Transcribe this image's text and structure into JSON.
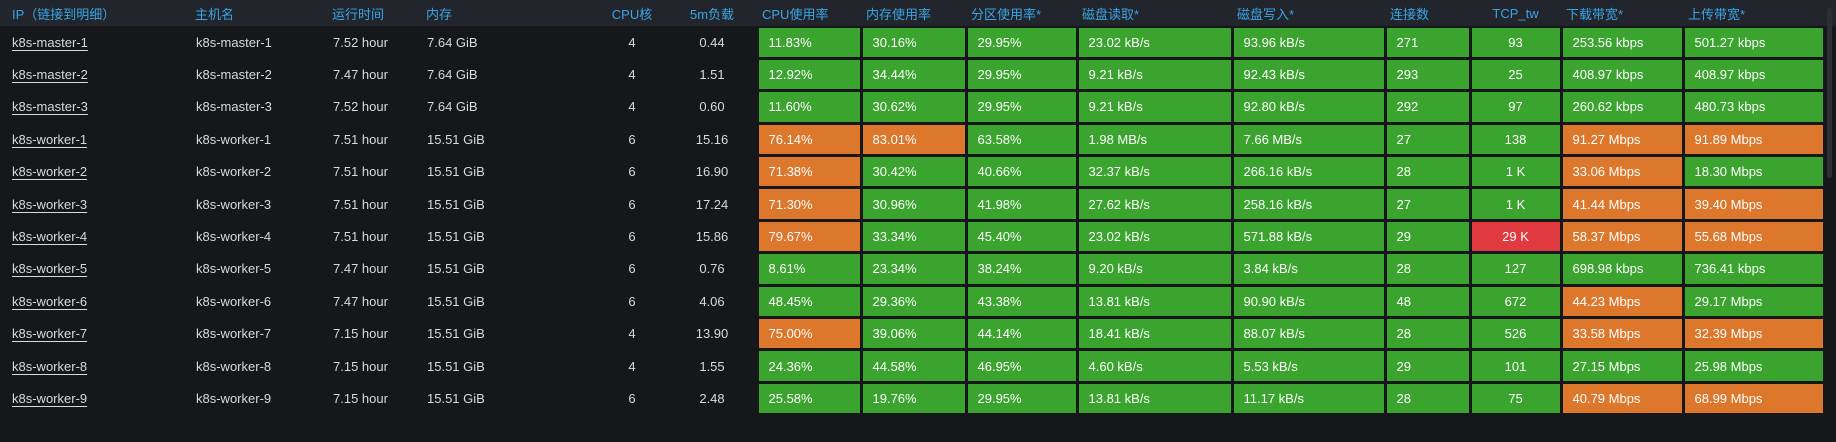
{
  "colors": {
    "green": "#3aa42e",
    "orange": "#dc772b",
    "red": "#e0393f",
    "header_text": "#3aa5e6"
  },
  "table": {
    "columns": [
      {
        "id": "ip",
        "label": "IP（链接到明细）"
      },
      {
        "id": "hostname",
        "label": "主机名"
      },
      {
        "id": "uptime",
        "label": "运行时间"
      },
      {
        "id": "memory",
        "label": "内存"
      },
      {
        "id": "cpu_cores",
        "label": "CPU核"
      },
      {
        "id": "load_5m",
        "label": "5m负载"
      },
      {
        "id": "cpu_usage",
        "label": "CPU使用率"
      },
      {
        "id": "mem_usage",
        "label": "内存使用率"
      },
      {
        "id": "partition_usage",
        "label": "分区使用率*"
      },
      {
        "id": "disk_read",
        "label": "磁盘读取*"
      },
      {
        "id": "disk_write",
        "label": "磁盘写入*"
      },
      {
        "id": "connections",
        "label": "连接数"
      },
      {
        "id": "tcp_tw",
        "label": "TCP_tw"
      },
      {
        "id": "download_bw",
        "label": "下载带宽*"
      },
      {
        "id": "upload_bw",
        "label": "上传带宽*"
      }
    ],
    "rows": [
      {
        "ip": "k8s-master-1",
        "hostname": "k8s-master-1",
        "uptime": "7.52 hour",
        "memory": "7.64 GiB",
        "cpu_cores": "4",
        "load_5m": "0.44",
        "cpu_usage": {
          "v": "11.83%",
          "c": "green"
        },
        "mem_usage": {
          "v": "30.16%",
          "c": "green"
        },
        "partition_usage": {
          "v": "29.95%",
          "c": "green"
        },
        "disk_read": {
          "v": "23.02 kB/s",
          "c": "green"
        },
        "disk_write": {
          "v": "93.96 kB/s",
          "c": "green"
        },
        "connections": {
          "v": "271",
          "c": "green"
        },
        "tcp_tw": {
          "v": "93",
          "c": "green"
        },
        "download_bw": {
          "v": "253.56 kbps",
          "c": "green"
        },
        "upload_bw": {
          "v": "501.27 kbps",
          "c": "green"
        }
      },
      {
        "ip": "k8s-master-2",
        "hostname": "k8s-master-2",
        "uptime": "7.47 hour",
        "memory": "7.64 GiB",
        "cpu_cores": "4",
        "load_5m": "1.51",
        "cpu_usage": {
          "v": "12.92%",
          "c": "green"
        },
        "mem_usage": {
          "v": "34.44%",
          "c": "green"
        },
        "partition_usage": {
          "v": "29.95%",
          "c": "green"
        },
        "disk_read": {
          "v": "9.21 kB/s",
          "c": "green"
        },
        "disk_write": {
          "v": "92.43 kB/s",
          "c": "green"
        },
        "connections": {
          "v": "293",
          "c": "green"
        },
        "tcp_tw": {
          "v": "25",
          "c": "green"
        },
        "download_bw": {
          "v": "408.97 kbps",
          "c": "green"
        },
        "upload_bw": {
          "v": "408.97 kbps",
          "c": "green"
        }
      },
      {
        "ip": "k8s-master-3",
        "hostname": "k8s-master-3",
        "uptime": "7.52 hour",
        "memory": "7.64 GiB",
        "cpu_cores": "4",
        "load_5m": "0.60",
        "cpu_usage": {
          "v": "11.60%",
          "c": "green"
        },
        "mem_usage": {
          "v": "30.62%",
          "c": "green"
        },
        "partition_usage": {
          "v": "29.95%",
          "c": "green"
        },
        "disk_read": {
          "v": "9.21 kB/s",
          "c": "green"
        },
        "disk_write": {
          "v": "92.80 kB/s",
          "c": "green"
        },
        "connections": {
          "v": "292",
          "c": "green"
        },
        "tcp_tw": {
          "v": "97",
          "c": "green"
        },
        "download_bw": {
          "v": "260.62 kbps",
          "c": "green"
        },
        "upload_bw": {
          "v": "480.73 kbps",
          "c": "green"
        }
      },
      {
        "ip": "k8s-worker-1",
        "hostname": "k8s-worker-1",
        "uptime": "7.51 hour",
        "memory": "15.51 GiB",
        "cpu_cores": "6",
        "load_5m": "15.16",
        "cpu_usage": {
          "v": "76.14%",
          "c": "orange"
        },
        "mem_usage": {
          "v": "83.01%",
          "c": "orange"
        },
        "partition_usage": {
          "v": "63.58%",
          "c": "green"
        },
        "disk_read": {
          "v": "1.98 MB/s",
          "c": "green"
        },
        "disk_write": {
          "v": "7.66 MB/s",
          "c": "green"
        },
        "connections": {
          "v": "27",
          "c": "green"
        },
        "tcp_tw": {
          "v": "138",
          "c": "green"
        },
        "download_bw": {
          "v": "91.27 Mbps",
          "c": "orange"
        },
        "upload_bw": {
          "v": "91.89 Mbps",
          "c": "orange"
        }
      },
      {
        "ip": "k8s-worker-2",
        "hostname": "k8s-worker-2",
        "uptime": "7.51 hour",
        "memory": "15.51 GiB",
        "cpu_cores": "6",
        "load_5m": "16.90",
        "cpu_usage": {
          "v": "71.38%",
          "c": "orange"
        },
        "mem_usage": {
          "v": "30.42%",
          "c": "green"
        },
        "partition_usage": {
          "v": "40.66%",
          "c": "green"
        },
        "disk_read": {
          "v": "32.37 kB/s",
          "c": "green"
        },
        "disk_write": {
          "v": "266.16 kB/s",
          "c": "green"
        },
        "connections": {
          "v": "28",
          "c": "green"
        },
        "tcp_tw": {
          "v": "1 K",
          "c": "green"
        },
        "download_bw": {
          "v": "33.06 Mbps",
          "c": "orange"
        },
        "upload_bw": {
          "v": "18.30 Mbps",
          "c": "green"
        }
      },
      {
        "ip": "k8s-worker-3",
        "hostname": "k8s-worker-3",
        "uptime": "7.51 hour",
        "memory": "15.51 GiB",
        "cpu_cores": "6",
        "load_5m": "17.24",
        "cpu_usage": {
          "v": "71.30%",
          "c": "orange"
        },
        "mem_usage": {
          "v": "30.96%",
          "c": "green"
        },
        "partition_usage": {
          "v": "41.98%",
          "c": "green"
        },
        "disk_read": {
          "v": "27.62 kB/s",
          "c": "green"
        },
        "disk_write": {
          "v": "258.16 kB/s",
          "c": "green"
        },
        "connections": {
          "v": "27",
          "c": "green"
        },
        "tcp_tw": {
          "v": "1 K",
          "c": "green"
        },
        "download_bw": {
          "v": "41.44 Mbps",
          "c": "orange"
        },
        "upload_bw": {
          "v": "39.40 Mbps",
          "c": "orange"
        }
      },
      {
        "ip": "k8s-worker-4",
        "hostname": "k8s-worker-4",
        "uptime": "7.51 hour",
        "memory": "15.51 GiB",
        "cpu_cores": "6",
        "load_5m": "15.86",
        "cpu_usage": {
          "v": "79.67%",
          "c": "orange"
        },
        "mem_usage": {
          "v": "33.34%",
          "c": "green"
        },
        "partition_usage": {
          "v": "45.40%",
          "c": "green"
        },
        "disk_read": {
          "v": "23.02 kB/s",
          "c": "green"
        },
        "disk_write": {
          "v": "571.88 kB/s",
          "c": "green"
        },
        "connections": {
          "v": "29",
          "c": "green"
        },
        "tcp_tw": {
          "v": "29 K",
          "c": "red"
        },
        "download_bw": {
          "v": "58.37 Mbps",
          "c": "orange"
        },
        "upload_bw": {
          "v": "55.68 Mbps",
          "c": "orange"
        }
      },
      {
        "ip": "k8s-worker-5",
        "hostname": "k8s-worker-5",
        "uptime": "7.47 hour",
        "memory": "15.51 GiB",
        "cpu_cores": "6",
        "load_5m": "0.76",
        "cpu_usage": {
          "v": "8.61%",
          "c": "green"
        },
        "mem_usage": {
          "v": "23.34%",
          "c": "green"
        },
        "partition_usage": {
          "v": "38.24%",
          "c": "green"
        },
        "disk_read": {
          "v": "9.20 kB/s",
          "c": "green"
        },
        "disk_write": {
          "v": "3.84 kB/s",
          "c": "green"
        },
        "connections": {
          "v": "28",
          "c": "green"
        },
        "tcp_tw": {
          "v": "127",
          "c": "green"
        },
        "download_bw": {
          "v": "698.98 kbps",
          "c": "green"
        },
        "upload_bw": {
          "v": "736.41 kbps",
          "c": "green"
        }
      },
      {
        "ip": "k8s-worker-6",
        "hostname": "k8s-worker-6",
        "uptime": "7.47 hour",
        "memory": "15.51 GiB",
        "cpu_cores": "6",
        "load_5m": "4.06",
        "cpu_usage": {
          "v": "48.45%",
          "c": "green"
        },
        "mem_usage": {
          "v": "29.36%",
          "c": "green"
        },
        "partition_usage": {
          "v": "43.38%",
          "c": "green"
        },
        "disk_read": {
          "v": "13.81 kB/s",
          "c": "green"
        },
        "disk_write": {
          "v": "90.90 kB/s",
          "c": "green"
        },
        "connections": {
          "v": "48",
          "c": "green"
        },
        "tcp_tw": {
          "v": "672",
          "c": "green"
        },
        "download_bw": {
          "v": "44.23 Mbps",
          "c": "orange"
        },
        "upload_bw": {
          "v": "29.17 Mbps",
          "c": "green"
        }
      },
      {
        "ip": "k8s-worker-7",
        "hostname": "k8s-worker-7",
        "uptime": "7.15 hour",
        "memory": "15.51 GiB",
        "cpu_cores": "4",
        "load_5m": "13.90",
        "cpu_usage": {
          "v": "75.00%",
          "c": "orange"
        },
        "mem_usage": {
          "v": "39.06%",
          "c": "green"
        },
        "partition_usage": {
          "v": "44.14%",
          "c": "green"
        },
        "disk_read": {
          "v": "18.41 kB/s",
          "c": "green"
        },
        "disk_write": {
          "v": "88.07 kB/s",
          "c": "green"
        },
        "connections": {
          "v": "28",
          "c": "green"
        },
        "tcp_tw": {
          "v": "526",
          "c": "green"
        },
        "download_bw": {
          "v": "33.58 Mbps",
          "c": "orange"
        },
        "upload_bw": {
          "v": "32.39 Mbps",
          "c": "orange"
        }
      },
      {
        "ip": "k8s-worker-8",
        "hostname": "k8s-worker-8",
        "uptime": "7.15 hour",
        "memory": "15.51 GiB",
        "cpu_cores": "4",
        "load_5m": "1.55",
        "cpu_usage": {
          "v": "24.36%",
          "c": "green"
        },
        "mem_usage": {
          "v": "44.58%",
          "c": "green"
        },
        "partition_usage": {
          "v": "46.95%",
          "c": "green"
        },
        "disk_read": {
          "v": "4.60 kB/s",
          "c": "green"
        },
        "disk_write": {
          "v": "5.53 kB/s",
          "c": "green"
        },
        "connections": {
          "v": "29",
          "c": "green"
        },
        "tcp_tw": {
          "v": "101",
          "c": "green"
        },
        "download_bw": {
          "v": "27.15 Mbps",
          "c": "green"
        },
        "upload_bw": {
          "v": "25.98 Mbps",
          "c": "green"
        }
      },
      {
        "ip": "k8s-worker-9",
        "hostname": "k8s-worker-9",
        "uptime": "7.15 hour",
        "memory": "15.51 GiB",
        "cpu_cores": "6",
        "load_5m": "2.48",
        "cpu_usage": {
          "v": "25.58%",
          "c": "green"
        },
        "mem_usage": {
          "v": "19.76%",
          "c": "green"
        },
        "partition_usage": {
          "v": "29.95%",
          "c": "green"
        },
        "disk_read": {
          "v": "13.81 kB/s",
          "c": "green"
        },
        "disk_write": {
          "v": "11.17 kB/s",
          "c": "green"
        },
        "connections": {
          "v": "28",
          "c": "green"
        },
        "tcp_tw": {
          "v": "75",
          "c": "green"
        },
        "download_bw": {
          "v": "40.79 Mbps",
          "c": "orange"
        },
        "upload_bw": {
          "v": "68.99 Mbps",
          "c": "orange"
        }
      }
    ]
  }
}
